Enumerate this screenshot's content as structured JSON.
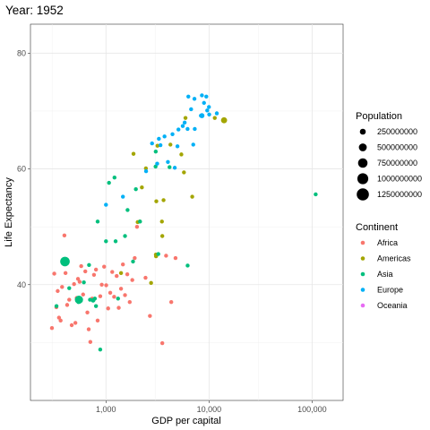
{
  "chart_data": {
    "type": "scatter",
    "title": "Year: 1952",
    "xlabel": "GDP per capital",
    "ylabel": "Life Expectancy",
    "x_scale": "log10",
    "xlim": [
      185,
      200000
    ],
    "ylim": [
      20,
      85
    ],
    "x_ticks": [
      1000,
      10000,
      100000
    ],
    "x_tick_labels": [
      "1,000",
      "10,000",
      "100,000"
    ],
    "y_ticks": [
      40,
      60,
      80
    ],
    "y_tick_labels": [
      "40",
      "60",
      "80"
    ],
    "grid": true,
    "legend_position": "right",
    "size_legend": {
      "title": "Population",
      "entries": [
        {
          "label": "250000000",
          "value": 250000000
        },
        {
          "label": "500000000",
          "value": 500000000
        },
        {
          "label": "750000000",
          "value": 750000000
        },
        {
          "label": "1000000000",
          "value": 1000000000
        },
        {
          "label": "1250000000",
          "value": 1250000000
        }
      ]
    },
    "color_legend": {
      "title": "Continent",
      "entries": [
        {
          "label": "Africa",
          "color": "#F8766D"
        },
        {
          "label": "Americas",
          "color": "#A3A500"
        },
        {
          "label": "Asia",
          "color": "#00BF7D"
        },
        {
          "label": "Europe",
          "color": "#00B0F6"
        },
        {
          "label": "Oceania",
          "color": "#E76BF3"
        }
      ]
    },
    "series": [
      {
        "name": "Africa",
        "color": "#F8766D",
        "points": [
          [
            299,
            32.5
          ],
          [
            315,
            41.9
          ],
          [
            330,
            36.1
          ],
          [
            340,
            38.9
          ],
          [
            350,
            34.3
          ],
          [
            363,
            33.8
          ],
          [
            375,
            39.6
          ],
          [
            395,
            48.5
          ],
          [
            405,
            42.0
          ],
          [
            420,
            36.5
          ],
          [
            440,
            37.4
          ],
          [
            465,
            33.0
          ],
          [
            490,
            40.1
          ],
          [
            505,
            33.4
          ],
          [
            520,
            37.7
          ],
          [
            535,
            41.0
          ],
          [
            555,
            40.5
          ],
          [
            575,
            43.2
          ],
          [
            600,
            38.3
          ],
          [
            630,
            42.3
          ],
          [
            660,
            35.2
          ],
          [
            680,
            32.3
          ],
          [
            705,
            30.1
          ],
          [
            735,
            37.6
          ],
          [
            765,
            41.7
          ],
          [
            800,
            42.6
          ],
          [
            830,
            33.8
          ],
          [
            880,
            38.0
          ],
          [
            910,
            40.0
          ],
          [
            960,
            43.1
          ],
          [
            1005,
            39.9
          ],
          [
            1050,
            35.9
          ],
          [
            1100,
            38.6
          ],
          [
            1150,
            42.2
          ],
          [
            1200,
            37.9
          ],
          [
            1270,
            41.5
          ],
          [
            1330,
            36.0
          ],
          [
            1400,
            39.3
          ],
          [
            1460,
            43.5
          ],
          [
            1530,
            38.2
          ],
          [
            1610,
            41.8
          ],
          [
            1700,
            37.0
          ],
          [
            1800,
            40.8
          ],
          [
            1900,
            44.6
          ],
          [
            2000,
            50.0
          ],
          [
            2420,
            41.2
          ],
          [
            2670,
            34.6
          ],
          [
            3520,
            29.9
          ],
          [
            3830,
            45.0
          ],
          [
            4300,
            37.0
          ],
          [
            4730,
            44.6
          ]
        ]
      },
      {
        "name": "Americas",
        "color": "#A3A500",
        "points": [
          [
            1400,
            42.0
          ],
          [
            1850,
            62.6
          ],
          [
            2030,
            50.8
          ],
          [
            2130,
            50.9
          ],
          [
            2230,
            56.8
          ],
          [
            2440,
            60.1
          ],
          [
            2740,
            40.3
          ],
          [
            3050,
            45.2
          ],
          [
            3060,
            44.9
          ],
          [
            3080,
            54.4
          ],
          [
            3160,
            64.0
          ],
          [
            3490,
            50.9
          ],
          [
            3520,
            48.4
          ],
          [
            3620,
            54.6
          ],
          [
            4220,
            64.2
          ],
          [
            5910,
            68.8
          ],
          [
            5390,
            62.5
          ],
          [
            5710,
            59.4
          ],
          [
            6870,
            55.2
          ],
          [
            11370,
            68.8
          ],
          [
            13990,
            68.4
          ]
        ]
      },
      {
        "name": "Asia",
        "color": "#00BF7D",
        "points": [
          [
            331,
            36.3
          ],
          [
            400,
            44.0
          ],
          [
            440,
            39.4
          ],
          [
            540,
            37.0
          ],
          [
            570,
            37.3
          ],
          [
            610,
            40.4
          ],
          [
            685,
            43.4
          ],
          [
            700,
            37.4
          ],
          [
            780,
            37.6
          ],
          [
            800,
            36.3
          ],
          [
            830,
            50.9
          ],
          [
            880,
            28.8
          ],
          [
            1000,
            47.5
          ],
          [
            1070,
            57.6
          ],
          [
            1210,
            58.5
          ],
          [
            1240,
            47.5
          ],
          [
            1310,
            37.6
          ],
          [
            1530,
            48.4
          ],
          [
            1620,
            52.9
          ],
          [
            1830,
            44.0
          ],
          [
            1950,
            56.5
          ],
          [
            2140,
            50.9
          ],
          [
            3040,
            63.0
          ],
          [
            3030,
            60.4
          ],
          [
            3220,
            45.3
          ],
          [
            4140,
            60.3
          ],
          [
            6200,
            43.3
          ],
          [
            108380,
            55.6
          ]
        ]
      },
      {
        "name": "Europe",
        "color": "#00B0F6",
        "points": [
          [
            1460,
            55.2
          ],
          [
            1000,
            53.8
          ],
          [
            2450,
            59.6
          ],
          [
            3140,
            60.9
          ],
          [
            3700,
            65.6
          ],
          [
            4420,
            66.0
          ],
          [
            5050,
            66.8
          ],
          [
            5800,
            68.0
          ],
          [
            6190,
            66.9
          ],
          [
            7030,
            64.2
          ],
          [
            8340,
            69.2
          ],
          [
            9410,
            72.5
          ],
          [
            10040,
            69.4
          ],
          [
            11900,
            69.6
          ],
          [
            7220,
            72.1
          ],
          [
            8530,
            72.7
          ],
          [
            9980,
            70.7
          ],
          [
            7270,
            66.9
          ],
          [
            6700,
            70.3
          ],
          [
            5560,
            67.4
          ],
          [
            4940,
            63.9
          ],
          [
            4650,
            60.2
          ],
          [
            3990,
            61.2
          ],
          [
            3260,
            65.2
          ],
          [
            2800,
            64.4
          ],
          [
            8940,
            71.4
          ],
          [
            6300,
            72.5
          ],
          [
            9600,
            70.1
          ],
          [
            3380,
            64.1
          ]
        ]
      },
      {
        "name": "Oceania",
        "color": "#E76BF3",
        "points": []
      }
    ],
    "large_points": [
      {
        "continent": "Asia",
        "x": 400,
        "y": 44.0,
        "pop": 556263527
      },
      {
        "continent": "Asia",
        "x": 546.6,
        "y": 37.4,
        "pop": 372000000
      },
      {
        "continent": "Asia",
        "x": 750,
        "y": 37.3,
        "pop": 60000000
      },
      {
        "continent": "Americas",
        "x": 13990,
        "y": 68.4,
        "pop": 157553000
      },
      {
        "continent": "Europe",
        "x": 8530,
        "y": 69.2,
        "pop": 86000000
      }
    ]
  }
}
